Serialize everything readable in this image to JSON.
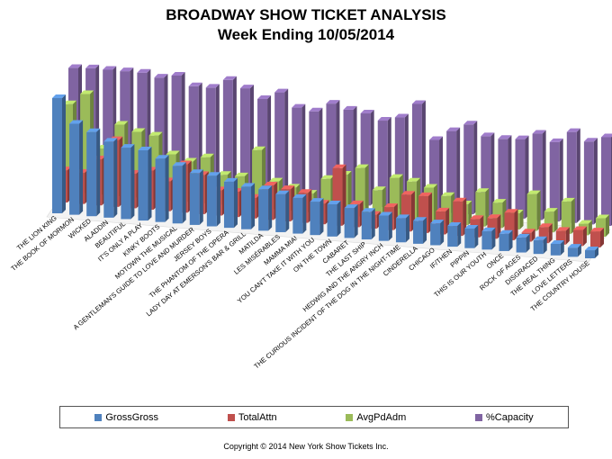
{
  "title": {
    "line1": "BROADWAY SHOW TICKET ANALYSIS",
    "line2": "Week Ending  10/05/2014"
  },
  "copyright": "Copyright © 2014 New York Show Tickets Inc.",
  "colors": {
    "gross": "#4F81BD",
    "attn": "#C0504D",
    "avg": "#9BBB59",
    "cap": "#8064A2"
  },
  "chart_data": {
    "type": "bar",
    "title": "BROADWAY SHOW TICKET ANALYSIS — Week Ending 10/05/2014",
    "categories": [
      "THE LION KING",
      "THE BOOK OF MORMON",
      "WICKED",
      "ALADDIN",
      "BEAUTIFUL",
      "IT'S ONLY A PLAY",
      "KINKY BOOTS",
      "MOTOWN THE MUSICAL",
      "A GENTLEMAN'S GUIDE TO LOVE AND MURDER",
      "JERSEY BOYS",
      "THE PHANTOM OF THE OPERA",
      "LADY DAY AT EMERSON'S BAR & GRILL",
      "MATILDA",
      "LES MISÉRABLES",
      "MAMMA MIA!",
      "YOU CAN'T TAKE IT WITH YOU",
      "ON THE TOWN",
      "CABARET",
      "THE LAST SHIP",
      "HEDWIG AND THE ANGRY INCH",
      "THE CURIOUS INCIDENT OF THE DOG IN THE NIGHT-TIME",
      "CINDERELLA",
      "CHICAGO",
      "IF/THEN",
      "PIPPIN",
      "THIS IS OUR YOUTH",
      "ONCE",
      "ROCK OF AGES",
      "DISGRACED",
      "THE REAL THING",
      "LOVE LETTERS",
      "THE COUNTRY HOUSE"
    ],
    "series": [
      {
        "name": "GrossGross",
        "values": [
          100,
          79,
          73,
          66,
          62,
          61,
          55,
          50,
          45,
          44,
          40,
          37,
          36,
          33,
          31,
          29,
          28,
          26,
          24,
          22,
          21,
          20,
          19,
          18,
          17,
          16,
          15,
          13,
          12,
          10,
          8,
          7
        ]
      },
      {
        "name": "TotalAttn",
        "values": [
          28,
          27,
          40,
          58,
          30,
          34,
          26,
          42,
          34,
          22,
          22,
          18,
          30,
          28,
          26,
          18,
          50,
          20,
          12,
          20,
          32,
          32,
          20,
          30,
          16,
          18,
          24,
          8,
          14,
          12,
          14,
          14
        ]
      },
      {
        "name": "AvgPdAdm",
        "values": [
          76,
          86,
          40,
          62,
          57,
          55,
          40,
          35,
          40,
          26,
          26,
          50,
          24,
          20,
          16,
          30,
          35,
          42,
          24,
          36,
          34,
          30,
          24,
          18,
          30,
          22,
          14,
          32,
          18,
          28,
          10,
          16
        ]
      },
      {
        "name": "%Capacity",
        "values": [
          98,
          99,
          99,
          99,
          99,
          96,
          99,
          91,
          91,
          99,
          93,
          85,
          92,
          80,
          78,
          86,
          82,
          80,
          75,
          79,
          92,
          62,
          71,
          78,
          69,
          68,
          69,
          75,
          69,
          79,
          72,
          77
        ]
      }
    ],
    "legend": "bottom",
    "grid": false
  }
}
